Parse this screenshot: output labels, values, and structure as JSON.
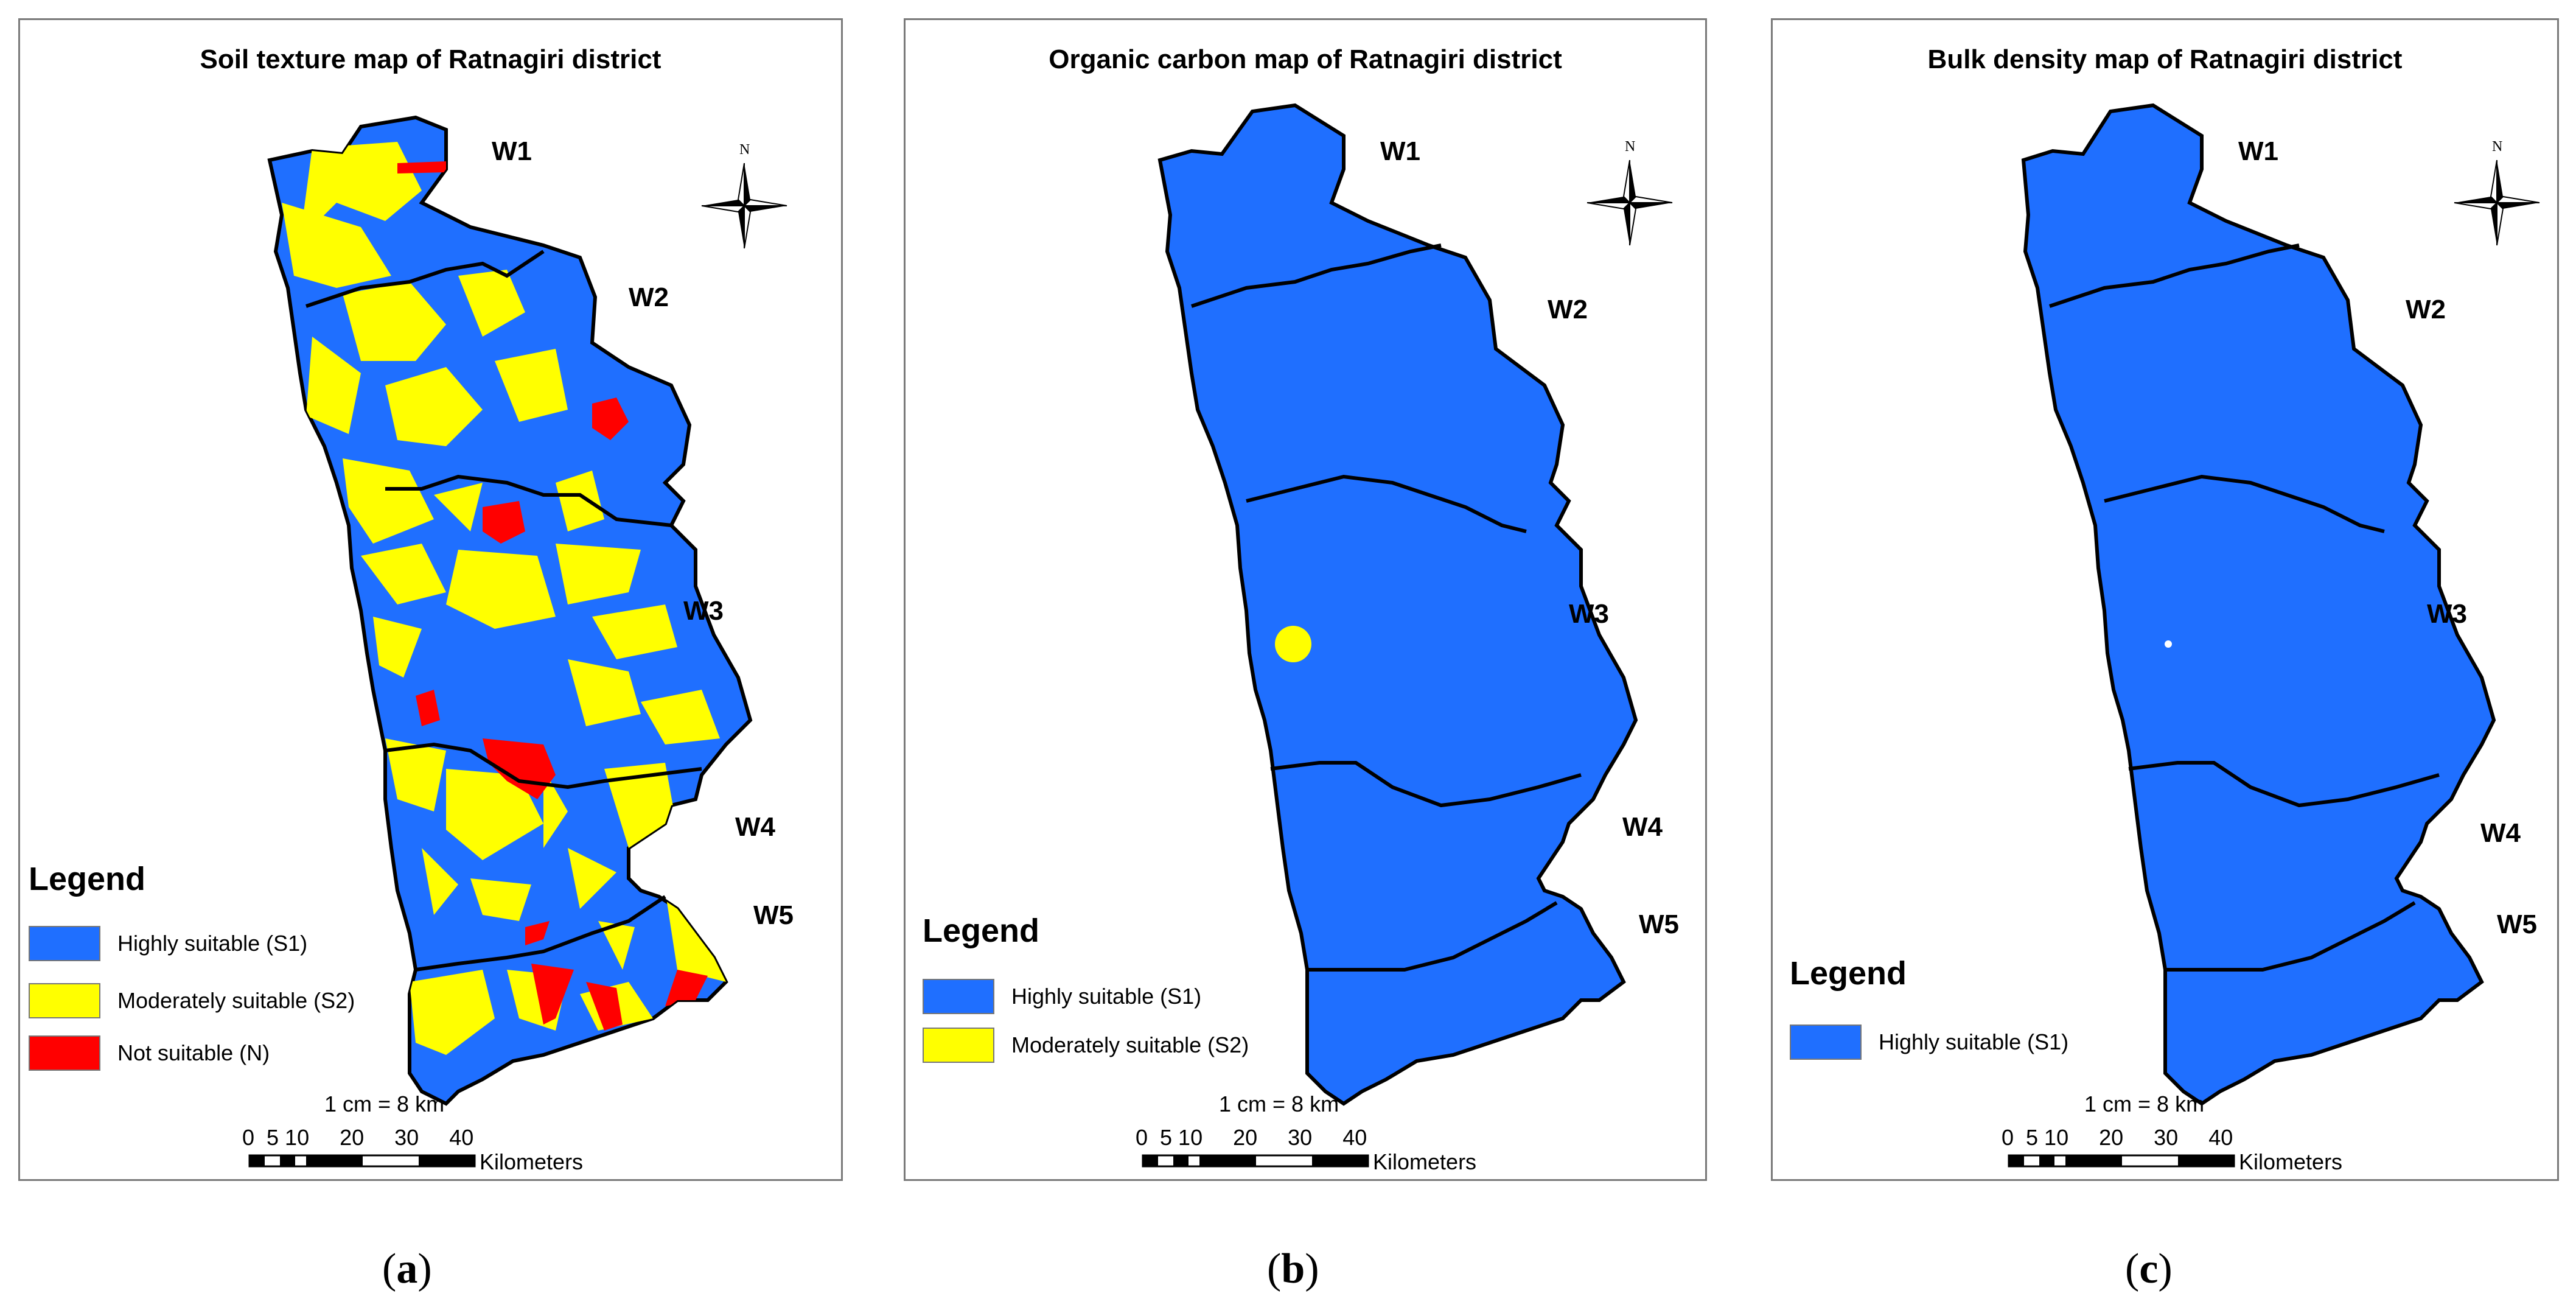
{
  "colors": {
    "s1": "#1f6fff",
    "s2": "#ffff00",
    "n": "#ff0000"
  },
  "panels": [
    {
      "id": "a",
      "title": "Soil texture map of Ratnagiri district",
      "watersheds": [
        "W1",
        "W2",
        "W3",
        "W4",
        "W5"
      ],
      "legend_title": "Legend",
      "legend": [
        {
          "label": "Highly suitable (S1)",
          "color": "#1f6fff"
        },
        {
          "label": "Moderately suitable (S2)",
          "color": "#ffff00"
        },
        {
          "label": "Not suitable (N)",
          "color": "#ff0000"
        }
      ],
      "scale_text": "1 cm = 8 km",
      "scale_ticks": "0  5 10     20     30     40",
      "scale_unit": "Kilometers",
      "north": "N",
      "caption": "a"
    },
    {
      "id": "b",
      "title": "Organic carbon map of Ratnagiri district",
      "watersheds": [
        "W1",
        "W2",
        "W3",
        "W4",
        "W5"
      ],
      "legend_title": "Legend",
      "legend": [
        {
          "label": "Highly suitable (S1)",
          "color": "#1f6fff"
        },
        {
          "label": "Moderately suitable (S2)",
          "color": "#ffff00"
        }
      ],
      "scale_text": "1 cm = 8 km",
      "scale_ticks": "0  5 10     20     30     40",
      "scale_unit": "Kilometers",
      "north": "N",
      "caption": "b"
    },
    {
      "id": "c",
      "title": "Bulk density map of Ratnagiri district",
      "watersheds": [
        "W1",
        "W2",
        "W3",
        "W4",
        "W5"
      ],
      "legend_title": "Legend",
      "legend": [
        {
          "label": "Highly suitable (S1)",
          "color": "#1f6fff"
        }
      ],
      "scale_text": "1 cm = 8 km",
      "scale_ticks": "0  5 10     20     30     40",
      "scale_unit": "Kilometers",
      "north": "N",
      "caption": "c"
    }
  ]
}
